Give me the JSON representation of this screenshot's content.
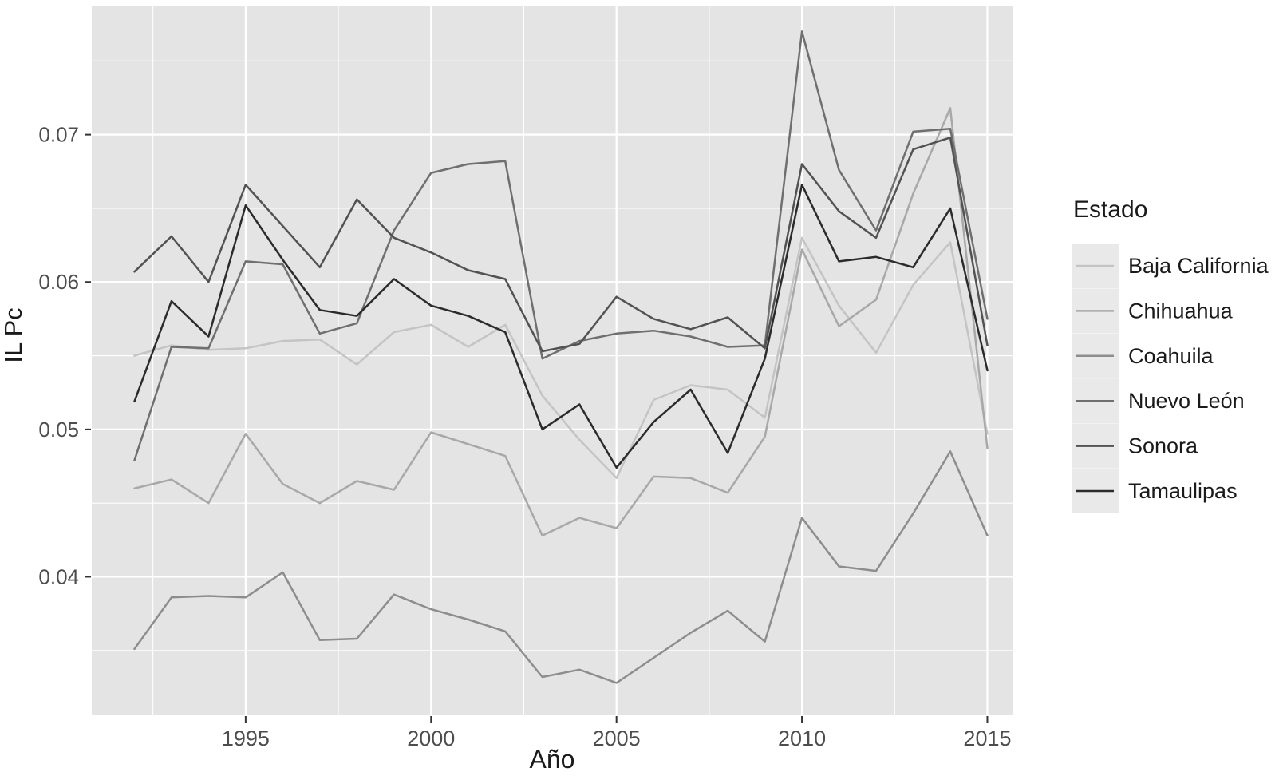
{
  "chart_data": {
    "type": "line",
    "title": "",
    "xlabel": "Año",
    "ylabel": "IL Pc",
    "legend_title": "Estado",
    "legend_position": "right",
    "grid": true,
    "panel_background": "#e4e4e4",
    "grid_color": "#ffffff",
    "tick_label_color": "#4d4d4d",
    "text_color": "#1a1a1a",
    "xlim": [
      1990.85,
      2015.7
    ],
    "ylim": [
      0.0306,
      0.0787
    ],
    "x_ticks": [
      1995,
      2000,
      2005,
      2010,
      2015
    ],
    "x_minor_ticks": [
      1992.5,
      1997.5,
      2002.5,
      2007.5,
      2012.5
    ],
    "y_ticks": [
      0.04,
      0.05,
      0.06,
      0.07
    ],
    "y_tick_labels": [
      "0.04",
      "0.05",
      "0.06",
      "0.07"
    ],
    "y_minor_ticks": [
      0.035,
      0.045,
      0.055,
      0.065,
      0.075
    ],
    "x": [
      1992,
      1993,
      1994,
      1995,
      1996,
      1997,
      1998,
      1999,
      2000,
      2001,
      2002,
      2003,
      2004,
      2005,
      2006,
      2007,
      2008,
      2009,
      2010,
      2011,
      2012,
      2013,
      2014,
      2015
    ],
    "series": [
      {
        "name": "Baja California",
        "color": "#c4c4c4",
        "values": [
          0.055,
          0.0557,
          0.0554,
          0.0555,
          0.056,
          0.0561,
          0.0544,
          0.0566,
          0.0571,
          0.0556,
          0.0571,
          0.0523,
          0.0493,
          0.0467,
          0.052,
          0.053,
          0.0527,
          0.0508,
          0.063,
          0.0584,
          0.0552,
          0.0598,
          0.0627,
          0.0497
        ]
      },
      {
        "name": "Chihuahua",
        "color": "#a8a8a8",
        "values": [
          0.046,
          0.0466,
          0.045,
          0.0497,
          0.0463,
          0.045,
          0.0465,
          0.0459,
          0.0498,
          0.049,
          0.0482,
          0.0428,
          0.044,
          0.0433,
          0.0468,
          0.0467,
          0.0457,
          0.0495,
          0.0622,
          0.057,
          0.0588,
          0.066,
          0.0718,
          0.0487
        ]
      },
      {
        "name": "Coahuila",
        "color": "#8d8d8d",
        "values": [
          0.0351,
          0.0386,
          0.0387,
          0.0386,
          0.0403,
          0.0357,
          0.0358,
          0.0388,
          0.0378,
          0.0371,
          0.0363,
          0.0332,
          0.0337,
          0.0328,
          0.0345,
          0.0362,
          0.0377,
          0.0356,
          0.044,
          0.0407,
          0.0404,
          0.0443,
          0.0485,
          0.0428
        ]
      },
      {
        "name": "Nuevo León",
        "color": "#6f6f6f",
        "values": [
          0.0479,
          0.0556,
          0.0555,
          0.0614,
          0.0612,
          0.0565,
          0.0572,
          0.0635,
          0.0674,
          0.068,
          0.0682,
          0.0548,
          0.056,
          0.0565,
          0.0567,
          0.0563,
          0.0556,
          0.0557,
          0.077,
          0.0676,
          0.0635,
          0.0702,
          0.0704,
          0.0575
        ]
      },
      {
        "name": "Sonora",
        "color": "#525252",
        "values": [
          0.0607,
          0.0631,
          0.06,
          0.0666,
          0.0638,
          0.061,
          0.0656,
          0.063,
          0.062,
          0.0608,
          0.0602,
          0.0553,
          0.0558,
          0.059,
          0.0575,
          0.0568,
          0.0576,
          0.0555,
          0.068,
          0.0648,
          0.063,
          0.069,
          0.0698,
          0.0557
        ]
      },
      {
        "name": "Tamaulipas",
        "color": "#2b2b2b",
        "values": [
          0.0519,
          0.0587,
          0.0563,
          0.0652,
          0.0615,
          0.0581,
          0.0577,
          0.0602,
          0.0584,
          0.0577,
          0.0566,
          0.05,
          0.0517,
          0.0474,
          0.0505,
          0.0527,
          0.0484,
          0.0548,
          0.0666,
          0.0614,
          0.0617,
          0.061,
          0.065,
          0.054
        ]
      }
    ]
  }
}
